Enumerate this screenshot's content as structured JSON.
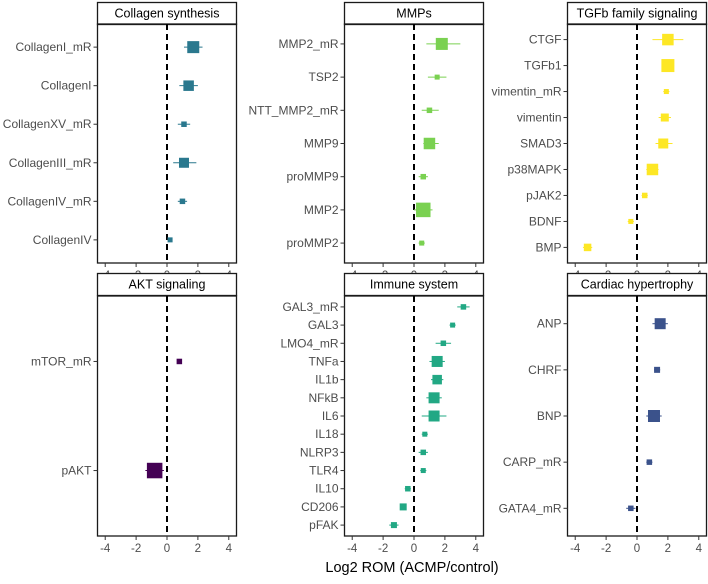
{
  "chart_data": {
    "type": "scatter",
    "subtype": "forest-plot",
    "xlabel": "Log2 ROM (ACMP/control)",
    "xlim": [
      -4.5,
      4.5
    ],
    "xticks": [
      -4,
      -2,
      0,
      2,
      4
    ],
    "reference_line": 0,
    "panels": [
      {
        "title": "Collagen synthesis",
        "color": "#2a788e",
        "items": [
          {
            "label": "CollagenI_mR",
            "estimate": 1.7,
            "lo": 1.1,
            "hi": 2.3,
            "weight": 1.0
          },
          {
            "label": "CollagenI",
            "estimate": 1.4,
            "lo": 0.8,
            "hi": 2.0,
            "weight": 0.85
          },
          {
            "label": "CollagenXV_mR",
            "estimate": 1.1,
            "lo": 0.7,
            "hi": 1.5,
            "weight": 0.35
          },
          {
            "label": "CollagenIII_mR",
            "estimate": 1.1,
            "lo": 0.4,
            "hi": 1.9,
            "weight": 0.8
          },
          {
            "label": "CollagenIV_mR",
            "estimate": 1.0,
            "lo": 0.7,
            "hi": 1.3,
            "weight": 0.35
          },
          {
            "label": "CollagenIV",
            "estimate": 0.2,
            "lo": 0.05,
            "hi": 0.35,
            "weight": 0.3
          }
        ]
      },
      {
        "title": "MMPs",
        "color": "#7ad151",
        "items": [
          {
            "label": "MMP2_mR",
            "estimate": 1.8,
            "lo": 0.8,
            "hi": 3.0,
            "weight": 1.0
          },
          {
            "label": "TSP2",
            "estimate": 1.5,
            "lo": 0.9,
            "hi": 2.1,
            "weight": 0.3
          },
          {
            "label": "NTT_MMP2_mR",
            "estimate": 1.0,
            "lo": 0.5,
            "hi": 1.6,
            "weight": 0.35
          },
          {
            "label": "MMP9",
            "estimate": 1.0,
            "lo": 0.6,
            "hi": 1.6,
            "weight": 0.95
          },
          {
            "label": "proMMP9",
            "estimate": 0.6,
            "lo": 0.3,
            "hi": 0.9,
            "weight": 0.35
          },
          {
            "label": "MMP2",
            "estimate": 0.6,
            "lo": 0.0,
            "hi": 1.2,
            "weight": 1.25
          },
          {
            "label": "proMMP2",
            "estimate": 0.5,
            "lo": 0.3,
            "hi": 0.7,
            "weight": 0.3
          }
        ]
      },
      {
        "title": "TGFb family signaling",
        "color": "#fde725",
        "items": [
          {
            "label": "CTGF",
            "estimate": 2.0,
            "lo": 1.0,
            "hi": 3.0,
            "weight": 0.95
          },
          {
            "label": "TGFb1",
            "estimate": 2.0,
            "lo": 1.6,
            "hi": 2.4,
            "weight": 1.1
          },
          {
            "label": "vimentin_mR",
            "estimate": 1.9,
            "lo": 1.7,
            "hi": 2.1,
            "weight": 0.3
          },
          {
            "label": "vimentin",
            "estimate": 1.8,
            "lo": 1.4,
            "hi": 2.2,
            "weight": 0.6
          },
          {
            "label": "SMAD3",
            "estimate": 1.7,
            "lo": 1.2,
            "hi": 2.3,
            "weight": 0.8
          },
          {
            "label": "p38MAPK",
            "estimate": 1.0,
            "lo": 0.6,
            "hi": 1.4,
            "weight": 0.95
          },
          {
            "label": "pJAK2",
            "estimate": 0.5,
            "lo": 0.3,
            "hi": 0.7,
            "weight": 0.35
          },
          {
            "label": "BDNF",
            "estimate": -0.4,
            "lo": -0.6,
            "hi": -0.2,
            "weight": 0.3
          },
          {
            "label": "BMP",
            "estimate": -3.2,
            "lo": -3.5,
            "hi": -2.9,
            "weight": 0.55
          }
        ]
      },
      {
        "title": "AKT signaling",
        "color": "#440154",
        "items": [
          {
            "label": "mTOR_mR",
            "estimate": 0.8,
            "lo": 0.7,
            "hi": 0.9,
            "weight": 0.35
          },
          {
            "label": "pAKT",
            "estimate": -0.8,
            "lo": -1.4,
            "hi": -0.2,
            "weight": 1.35
          }
        ]
      },
      {
        "title": "Immune system",
        "color": "#22a884",
        "items": [
          {
            "label": "GAL3_mR",
            "estimate": 3.2,
            "lo": 2.8,
            "hi": 3.6,
            "weight": 0.35
          },
          {
            "label": "GAL3",
            "estimate": 2.5,
            "lo": 2.3,
            "hi": 2.7,
            "weight": 0.3
          },
          {
            "label": "LMO4_mR",
            "estimate": 1.9,
            "lo": 1.4,
            "hi": 2.4,
            "weight": 0.35
          },
          {
            "label": "TNFa",
            "estimate": 1.5,
            "lo": 1.0,
            "hi": 2.0,
            "weight": 0.9
          },
          {
            "label": "IL1b",
            "estimate": 1.5,
            "lo": 1.1,
            "hi": 1.9,
            "weight": 0.75
          },
          {
            "label": "NFkB",
            "estimate": 1.3,
            "lo": 0.8,
            "hi": 1.8,
            "weight": 0.9
          },
          {
            "label": "IL6",
            "estimate": 1.3,
            "lo": 0.5,
            "hi": 2.1,
            "weight": 0.9
          },
          {
            "label": "IL18",
            "estimate": 0.7,
            "lo": 0.5,
            "hi": 0.9,
            "weight": 0.3
          },
          {
            "label": "NLRP3",
            "estimate": 0.6,
            "lo": 0.3,
            "hi": 0.9,
            "weight": 0.35
          },
          {
            "label": "TLR4",
            "estimate": 0.6,
            "lo": 0.4,
            "hi": 0.8,
            "weight": 0.3
          },
          {
            "label": "IL10",
            "estimate": -0.4,
            "lo": -0.6,
            "hi": -0.2,
            "weight": 0.35
          },
          {
            "label": "CD206",
            "estimate": -0.7,
            "lo": -0.9,
            "hi": -0.5,
            "weight": 0.5
          },
          {
            "label": "pFAK",
            "estimate": -1.3,
            "lo": -1.6,
            "hi": -1.0,
            "weight": 0.4
          }
        ]
      },
      {
        "title": "Cardiac hypertrophy",
        "color": "#3b528b",
        "items": [
          {
            "label": "ANP",
            "estimate": 1.5,
            "lo": 1.0,
            "hi": 2.0,
            "weight": 0.9
          },
          {
            "label": "CHRF",
            "estimate": 1.3,
            "lo": 1.1,
            "hi": 1.5,
            "weight": 0.4
          },
          {
            "label": "BNP",
            "estimate": 1.1,
            "lo": 0.6,
            "hi": 1.6,
            "weight": 1.0
          },
          {
            "label": "CARP_mR",
            "estimate": 0.8,
            "lo": 0.6,
            "hi": 1.0,
            "weight": 0.35
          },
          {
            "label": "GATA4_mR",
            "estimate": -0.4,
            "lo": -0.7,
            "hi": -0.1,
            "weight": 0.35
          }
        ]
      }
    ]
  }
}
